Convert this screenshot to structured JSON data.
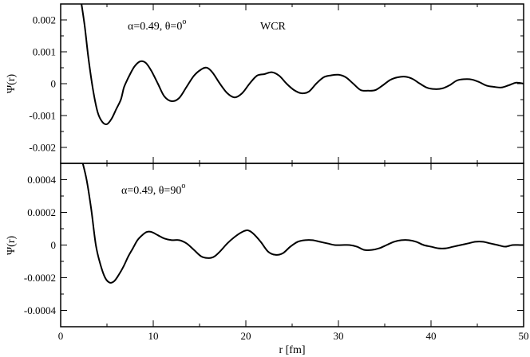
{
  "chart_data": [
    {
      "type": "line",
      "panel": "top",
      "annotation": "α=0.49, θ=0°",
      "annotation_main": "α=0.49, θ=0",
      "annotation_sup": "o",
      "label": "WCR",
      "ylabel": "Ψ(r)",
      "xlabel": "",
      "xlim": [
        0,
        50
      ],
      "ylim": [
        -0.0025,
        0.0025
      ],
      "xticks": [
        0,
        10,
        20,
        30,
        40,
        50
      ],
      "yticks": [
        -0.002,
        -0.001,
        0,
        0.001,
        0.002
      ],
      "ytick_labels": [
        "-0.002",
        "-0.001",
        "0",
        "0.001",
        "0.002"
      ],
      "series": [
        {
          "x": [
            2.2,
            2.6,
            3.0,
            3.5,
            4.0,
            4.5,
            5.0,
            5.5,
            6.0,
            6.5,
            6.8,
            7.0,
            7.5,
            8.0,
            8.6,
            9.2,
            9.8,
            10.5,
            11.2,
            12.0,
            12.8,
            13.6,
            14.4,
            15.2,
            15.8,
            16.4,
            17.2,
            18.0,
            18.8,
            19.6,
            20.4,
            21.2,
            22.0,
            22.8,
            23.6,
            24.4,
            25.2,
            26.0,
            26.8,
            27.6,
            28.4,
            29.2,
            30.0,
            30.8,
            31.6,
            32.4,
            33.2,
            34.0,
            34.8,
            35.6,
            36.4,
            37.2,
            38.0,
            38.8,
            39.6,
            40.4,
            41.2,
            42.0,
            42.8,
            43.6,
            44.4,
            45.2,
            46.0,
            46.8,
            47.6,
            48.4,
            49.2,
            50.0
          ],
          "y": [
            0.0026,
            0.0018,
            0.0008,
            -0.0002,
            -0.0009,
            -0.0012,
            -0.00127,
            -0.0011,
            -0.0008,
            -0.0005,
            -0.00015,
            0.0,
            0.0003,
            0.00055,
            0.0007,
            0.00065,
            0.0004,
            0.0,
            -0.0004,
            -0.00055,
            -0.00045,
            -0.0001,
            0.00025,
            0.00045,
            0.0005,
            0.00035,
            0.0,
            -0.0003,
            -0.00043,
            -0.0003,
            0.0,
            0.00025,
            0.0003,
            0.00036,
            0.00025,
            0.0,
            -0.0002,
            -0.0003,
            -0.00025,
            0.0,
            0.0002,
            0.00026,
            0.00028,
            0.0002,
            0.0,
            -0.0002,
            -0.00022,
            -0.0002,
            -5e-05,
            0.00012,
            0.0002,
            0.00022,
            0.00015,
            0.0,
            -0.00013,
            -0.00017,
            -0.00015,
            -5e-05,
            0.0001,
            0.00014,
            0.00013,
            5e-05,
            -6e-05,
            -0.0001,
            -0.00012,
            -5e-05,
            3e-05,
            0.0
          ]
        }
      ]
    },
    {
      "type": "line",
      "panel": "bottom",
      "annotation": "α=0.49, θ=90°",
      "annotation_main": "α=0.49, θ=90",
      "annotation_sup": "o",
      "ylabel": "Ψ(r)",
      "xlabel": "r [fm]",
      "xlim": [
        0,
        50
      ],
      "ylim": [
        -0.0005,
        0.0005
      ],
      "xticks": [
        0,
        10,
        20,
        30,
        40,
        50
      ],
      "xtick_labels": [
        "0",
        "10",
        "20",
        "30",
        "40",
        "50"
      ],
      "yticks": [
        -0.0004,
        -0.0002,
        0,
        0.0002,
        0.0004
      ],
      "ytick_labels": [
        "-0.0004",
        "-0.0002",
        "0",
        "0.0002",
        "0.0004"
      ],
      "series": [
        {
          "x": [
            2.3,
            2.8,
            3.3,
            3.8,
            4.3,
            4.8,
            5.3,
            5.8,
            6.3,
            6.8,
            7.3,
            7.8,
            8.3,
            8.8,
            9.3,
            9.8,
            10.5,
            11.2,
            12.0,
            12.8,
            13.6,
            14.4,
            15.2,
            16.0,
            16.6,
            17.2,
            18.0,
            18.8,
            19.6,
            20.2,
            20.8,
            21.6,
            22.4,
            23.2,
            24.0,
            24.8,
            25.6,
            26.4,
            27.2,
            28.0,
            28.8,
            29.6,
            30.4,
            31.2,
            32.0,
            32.8,
            33.6,
            34.4,
            35.2,
            36.0,
            36.8,
            37.6,
            38.4,
            39.2,
            40.0,
            40.8,
            41.6,
            42.4,
            43.2,
            44.0,
            44.8,
            45.6,
            46.4,
            47.2,
            48.0,
            48.8,
            49.6,
            50.0
          ],
          "y": [
            0.00052,
            0.0004,
            0.00022,
            0.0,
            -0.00012,
            -0.0002,
            -0.00023,
            -0.00022,
            -0.00018,
            -0.00013,
            -7e-05,
            -2e-05,
            3e-05,
            6e-05,
            8e-05,
            8e-05,
            6e-05,
            4e-05,
            3e-05,
            3e-05,
            1e-05,
            -3e-05,
            -7e-05,
            -8e-05,
            -7e-05,
            -4e-05,
            1e-05,
            5e-05,
            8e-05,
            9e-05,
            7e-05,
            2e-05,
            -4e-05,
            -6e-05,
            -5e-05,
            -1e-05,
            2e-05,
            3e-05,
            3e-05,
            2e-05,
            1e-05,
            0.0,
            0.0,
            0.0,
            -1e-05,
            -3e-05,
            -3e-05,
            -2e-05,
            0.0,
            2e-05,
            3e-05,
            3e-05,
            2e-05,
            0.0,
            -1e-05,
            -2e-05,
            -2e-05,
            -1e-05,
            0.0,
            1e-05,
            2e-05,
            2e-05,
            1e-05,
            0.0,
            -1e-05,
            0.0,
            0.0,
            0.0
          ]
        }
      ]
    }
  ]
}
